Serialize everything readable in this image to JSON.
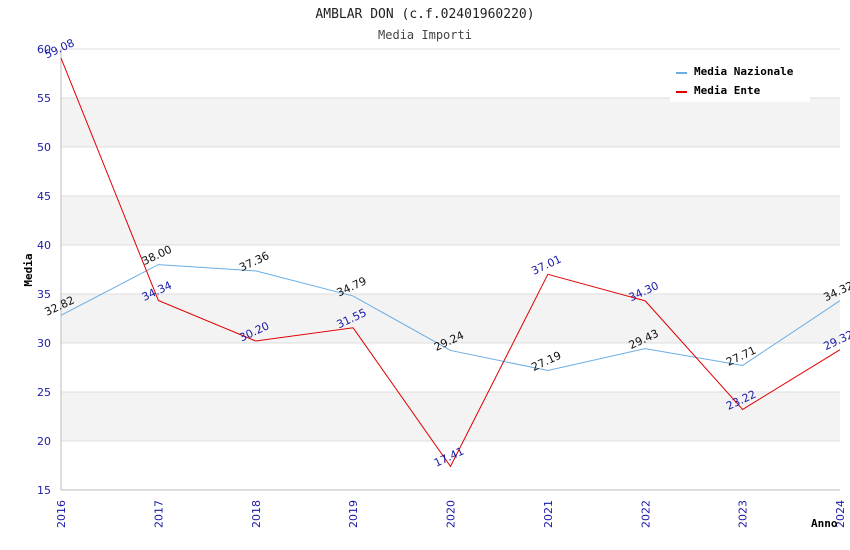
{
  "chart_data": {
    "type": "line",
    "title": "AMBLAR DON (c.f.02401960220)",
    "subtitle": "Media Importi",
    "xlabel": "Anno",
    "ylabel": "Media",
    "ylim": [
      15,
      60
    ],
    "yticks": [
      "15",
      "20",
      "25",
      "30",
      "35",
      "40",
      "45",
      "50",
      "55",
      "60"
    ],
    "categories": [
      "2016",
      "2017",
      "2018",
      "2019",
      "2020",
      "2021",
      "2022",
      "2023",
      "2024"
    ],
    "series": [
      {
        "name": "Media Nazionale",
        "color": "#6aaee6",
        "values": [
          32.82,
          38.0,
          37.36,
          34.79,
          29.24,
          27.19,
          29.43,
          27.71,
          34.32
        ],
        "labels": [
          "32.82",
          "38.00",
          "37.36",
          "34.79",
          "29.24",
          "27.19",
          "29.43",
          "27.71",
          "34.32"
        ]
      },
      {
        "name": "Media Ente",
        "color": "#e00000",
        "values": [
          59.08,
          34.34,
          30.2,
          31.55,
          17.41,
          37.01,
          34.3,
          23.22,
          29.32
        ],
        "labels": [
          "59.08",
          "34.34",
          "30.20",
          "31.55",
          "17.41",
          "37.01",
          "34.30",
          "23.22",
          "29.32"
        ]
      }
    ],
    "legend_position": "top-right",
    "grid": true
  }
}
